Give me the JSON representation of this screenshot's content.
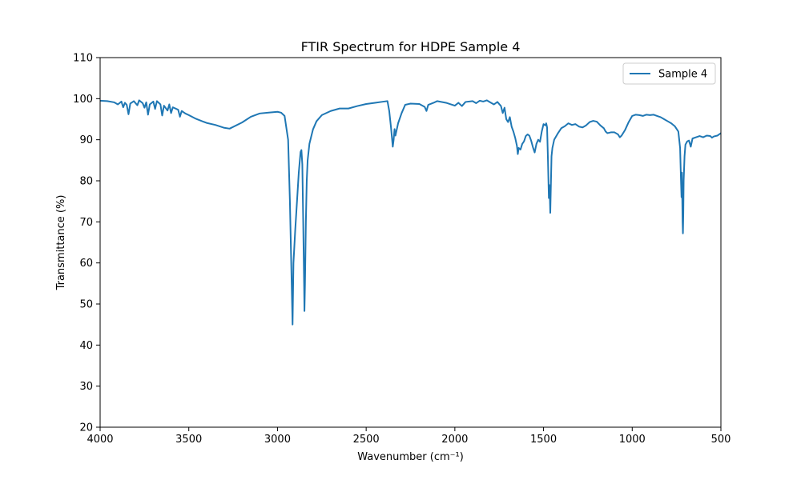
{
  "chart_data": {
    "type": "line",
    "title": "FTIR Spectrum for HDPE Sample 4",
    "xlabel": "Wavenumber (cm⁻¹)",
    "ylabel": "Transmittance (%)",
    "xlim": [
      4000,
      500
    ],
    "ylim": [
      20,
      110
    ],
    "x_reversed": true,
    "xticks": [
      4000,
      3500,
      3000,
      2500,
      2000,
      1500,
      1000,
      500
    ],
    "yticks": [
      20,
      30,
      40,
      50,
      60,
      70,
      80,
      90,
      100,
      110
    ],
    "grid": false,
    "legend_position": "top-right",
    "series": [
      {
        "name": "Sample 4",
        "color": "#1f77b4",
        "points": [
          [
            4000,
            99.5
          ],
          [
            3960,
            99.4
          ],
          [
            3920,
            99.1
          ],
          [
            3900,
            98.6
          ],
          [
            3880,
            99.3
          ],
          [
            3870,
            97.9
          ],
          [
            3860,
            99.0
          ],
          [
            3850,
            98.5
          ],
          [
            3840,
            96.2
          ],
          [
            3830,
            98.8
          ],
          [
            3810,
            99.4
          ],
          [
            3790,
            98.4
          ],
          [
            3780,
            99.6
          ],
          [
            3760,
            98.9
          ],
          [
            3750,
            97.8
          ],
          [
            3740,
            99.1
          ],
          [
            3730,
            96.1
          ],
          [
            3720,
            98.6
          ],
          [
            3700,
            99.3
          ],
          [
            3690,
            97.5
          ],
          [
            3680,
            99.4
          ],
          [
            3660,
            98.6
          ],
          [
            3650,
            95.9
          ],
          [
            3640,
            98.3
          ],
          [
            3620,
            97.1
          ],
          [
            3610,
            98.6
          ],
          [
            3600,
            96.5
          ],
          [
            3590,
            97.9
          ],
          [
            3560,
            97.3
          ],
          [
            3550,
            95.6
          ],
          [
            3540,
            97.0
          ],
          [
            3520,
            96.4
          ],
          [
            3500,
            96.0
          ],
          [
            3460,
            95.1
          ],
          [
            3400,
            94.1
          ],
          [
            3350,
            93.6
          ],
          [
            3300,
            92.9
          ],
          [
            3270,
            92.7
          ],
          [
            3200,
            94.2
          ],
          [
            3150,
            95.6
          ],
          [
            3100,
            96.4
          ],
          [
            3050,
            96.6
          ],
          [
            3000,
            96.8
          ],
          [
            2980,
            96.6
          ],
          [
            2960,
            95.8
          ],
          [
            2940,
            90.0
          ],
          [
            2930,
            75.0
          ],
          [
            2920,
            55.0
          ],
          [
            2915,
            45.0
          ],
          [
            2910,
            60.0
          ],
          [
            2900,
            68.0
          ],
          [
            2890,
            75.0
          ],
          [
            2880,
            82.0
          ],
          [
            2870,
            87.0
          ],
          [
            2865,
            87.5
          ],
          [
            2860,
            84.0
          ],
          [
            2855,
            70.0
          ],
          [
            2850,
            55.0
          ],
          [
            2848,
            48.3
          ],
          [
            2845,
            55.0
          ],
          [
            2840,
            70.0
          ],
          [
            2835,
            80.0
          ],
          [
            2830,
            85.0
          ],
          [
            2820,
            89.0
          ],
          [
            2800,
            92.5
          ],
          [
            2780,
            94.5
          ],
          [
            2750,
            96.0
          ],
          [
            2700,
            97.0
          ],
          [
            2650,
            97.6
          ],
          [
            2600,
            97.6
          ],
          [
            2550,
            98.2
          ],
          [
            2500,
            98.7
          ],
          [
            2450,
            99.0
          ],
          [
            2400,
            99.3
          ],
          [
            2380,
            99.4
          ],
          [
            2370,
            97.0
          ],
          [
            2360,
            93.0
          ],
          [
            2350,
            88.3
          ],
          [
            2345,
            90.0
          ],
          [
            2340,
            92.6
          ],
          [
            2335,
            91.0
          ],
          [
            2330,
            92.0
          ],
          [
            2320,
            94.0
          ],
          [
            2300,
            96.5
          ],
          [
            2280,
            98.5
          ],
          [
            2250,
            98.8
          ],
          [
            2200,
            98.7
          ],
          [
            2170,
            98.0
          ],
          [
            2160,
            97.0
          ],
          [
            2150,
            98.5
          ],
          [
            2120,
            99.0
          ],
          [
            2100,
            99.4
          ],
          [
            2050,
            99.0
          ],
          [
            2000,
            98.3
          ],
          [
            1980,
            99.0
          ],
          [
            1960,
            98.2
          ],
          [
            1940,
            99.2
          ],
          [
            1900,
            99.4
          ],
          [
            1880,
            98.9
          ],
          [
            1860,
            99.5
          ],
          [
            1840,
            99.3
          ],
          [
            1820,
            99.6
          ],
          [
            1800,
            99.1
          ],
          [
            1780,
            98.6
          ],
          [
            1760,
            99.2
          ],
          [
            1740,
            98.2
          ],
          [
            1730,
            96.5
          ],
          [
            1720,
            97.8
          ],
          [
            1710,
            95.0
          ],
          [
            1700,
            94.3
          ],
          [
            1690,
            95.5
          ],
          [
            1680,
            93.2
          ],
          [
            1670,
            92.0
          ],
          [
            1660,
            90.5
          ],
          [
            1650,
            88.5
          ],
          [
            1645,
            86.5
          ],
          [
            1640,
            88.0
          ],
          [
            1630,
            87.6
          ],
          [
            1620,
            89.0
          ],
          [
            1610,
            89.6
          ],
          [
            1600,
            90.9
          ],
          [
            1590,
            91.3
          ],
          [
            1580,
            91.0
          ],
          [
            1570,
            89.8
          ],
          [
            1560,
            88.2
          ],
          [
            1550,
            86.9
          ],
          [
            1540,
            89.0
          ],
          [
            1530,
            90.0
          ],
          [
            1520,
            89.5
          ],
          [
            1510,
            92.0
          ],
          [
            1500,
            93.8
          ],
          [
            1490,
            93.5
          ],
          [
            1485,
            94.0
          ],
          [
            1480,
            93.0
          ],
          [
            1475,
            85.0
          ],
          [
            1470,
            75.8
          ],
          [
            1468,
            79.0
          ],
          [
            1465,
            77.0
          ],
          [
            1462,
            72.2
          ],
          [
            1458,
            80.0
          ],
          [
            1455,
            86.0
          ],
          [
            1450,
            88.0
          ],
          [
            1440,
            90.0
          ],
          [
            1420,
            91.5
          ],
          [
            1400,
            92.8
          ],
          [
            1380,
            93.3
          ],
          [
            1360,
            94.0
          ],
          [
            1340,
            93.6
          ],
          [
            1320,
            93.8
          ],
          [
            1300,
            93.2
          ],
          [
            1280,
            93.0
          ],
          [
            1260,
            93.5
          ],
          [
            1240,
            94.3
          ],
          [
            1220,
            94.6
          ],
          [
            1200,
            94.4
          ],
          [
            1180,
            93.5
          ],
          [
            1160,
            92.8
          ],
          [
            1150,
            92.0
          ],
          [
            1140,
            91.6
          ],
          [
            1120,
            91.8
          ],
          [
            1100,
            91.8
          ],
          [
            1080,
            91.3
          ],
          [
            1070,
            90.6
          ],
          [
            1060,
            91.0
          ],
          [
            1040,
            92.4
          ],
          [
            1020,
            94.3
          ],
          [
            1000,
            95.8
          ],
          [
            980,
            96.1
          ],
          [
            960,
            96.0
          ],
          [
            940,
            95.8
          ],
          [
            920,
            96.1
          ],
          [
            900,
            96.0
          ],
          [
            880,
            96.1
          ],
          [
            860,
            95.8
          ],
          [
            840,
            95.5
          ],
          [
            820,
            95.0
          ],
          [
            800,
            94.5
          ],
          [
            780,
            94.0
          ],
          [
            760,
            93.3
          ],
          [
            740,
            92.0
          ],
          [
            730,
            88.0
          ],
          [
            725,
            80.0
          ],
          [
            722,
            76.0
          ],
          [
            720,
            82.0
          ],
          [
            718,
            76.0
          ],
          [
            716,
            70.0
          ],
          [
            714,
            67.2
          ],
          [
            712,
            72.0
          ],
          [
            710,
            80.0
          ],
          [
            705,
            86.0
          ],
          [
            700,
            88.8
          ],
          [
            690,
            89.6
          ],
          [
            680,
            89.8
          ],
          [
            670,
            88.3
          ],
          [
            660,
            90.3
          ],
          [
            640,
            90.6
          ],
          [
            620,
            90.9
          ],
          [
            600,
            90.6
          ],
          [
            580,
            91.0
          ],
          [
            560,
            90.9
          ],
          [
            550,
            90.5
          ],
          [
            540,
            90.8
          ],
          [
            520,
            91.0
          ],
          [
            500,
            91.6
          ]
        ]
      }
    ]
  }
}
